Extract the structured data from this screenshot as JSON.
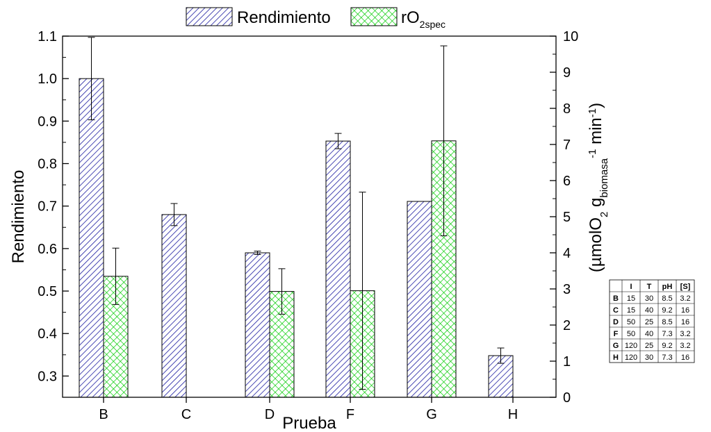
{
  "chart_data": {
    "type": "bar",
    "categories": [
      "B",
      "C",
      "D",
      "F",
      "G",
      "H"
    ],
    "xlabel": "Prueba",
    "ylabel": "Rendimiento",
    "y2label_parts": [
      "(µmolO",
      "2",
      " g",
      "biomasa",
      "-1",
      " min",
      "-1",
      ")"
    ],
    "ylim": [
      0.25,
      1.1
    ],
    "y2lim": [
      0,
      10
    ],
    "yticks": [
      "0.3",
      "0.4",
      "0.5",
      "0.6",
      "0.7",
      "0.8",
      "0.9",
      "1.0",
      "1.1"
    ],
    "y2ticks": [
      "0",
      "1",
      "2",
      "3",
      "4",
      "5",
      "6",
      "7",
      "8",
      "9",
      "10"
    ],
    "legend": {
      "position": "top-center",
      "rendimiento_label": "Rendimiento",
      "ro2_label_main": "rO",
      "ro2_label_sub": "2spec"
    },
    "series": [
      {
        "name": "Rendimiento",
        "axis": "left",
        "pattern": "diagonal-hatch",
        "color": "#1a1aa0",
        "values": [
          1.0,
          0.68,
          0.59,
          0.853,
          0.711,
          0.348
        ],
        "errors": [
          0.097,
          0.026,
          0.004,
          0.018,
          null,
          0.018
        ]
      },
      {
        "name": "rO2spec",
        "axis": "right",
        "pattern": "cross-hatch",
        "color": "#00cc00",
        "values": [
          3.35,
          null,
          2.93,
          2.95,
          7.1,
          null
        ],
        "errors": [
          0.78,
          null,
          0.63,
          2.73,
          2.63,
          null
        ]
      }
    ]
  },
  "table": {
    "headers": [
      "",
      "I",
      "T",
      "pH",
      "[S]"
    ],
    "rows": [
      [
        "B",
        "15",
        "30",
        "8.5",
        "3.2"
      ],
      [
        "C",
        "15",
        "40",
        "9.2",
        "16"
      ],
      [
        "D",
        "50",
        "25",
        "8.5",
        "16"
      ],
      [
        "F",
        "50",
        "40",
        "7.3",
        "3.2"
      ],
      [
        "G",
        "120",
        "25",
        "9.2",
        "3.2"
      ],
      [
        "H",
        "120",
        "30",
        "7.3",
        "16"
      ]
    ]
  }
}
